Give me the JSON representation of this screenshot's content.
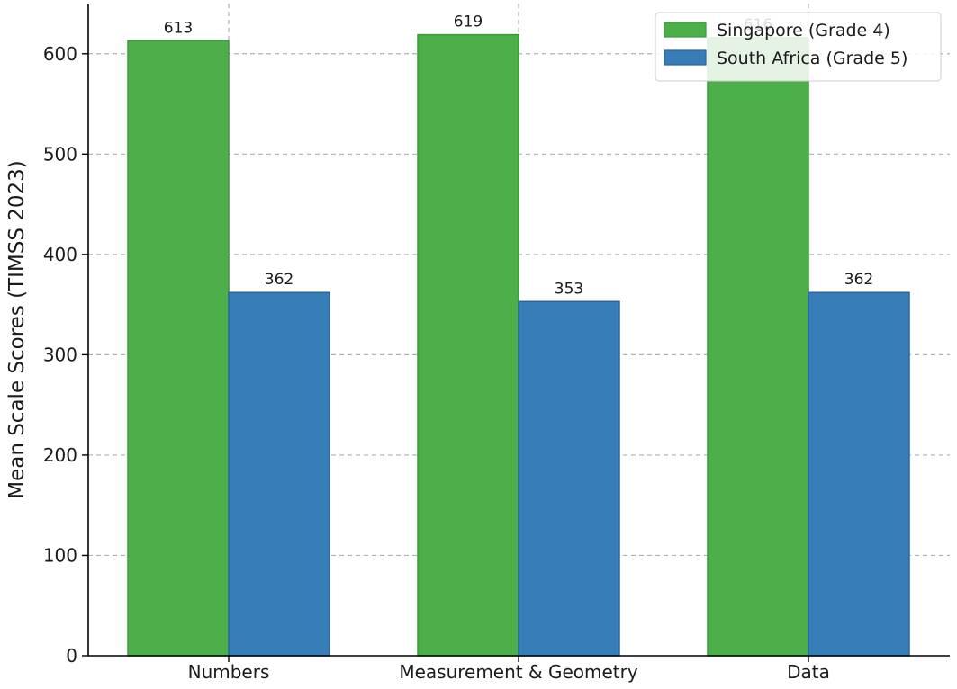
{
  "chart_data": {
    "type": "bar",
    "categories": [
      "Numbers",
      "Measurement & Geometry",
      "Data"
    ],
    "series": [
      {
        "name": "Singapore (Grade 4)",
        "values": [
          613,
          619,
          616
        ],
        "color": "#4daf4a",
        "edge": "#3c9a3a"
      },
      {
        "name": "South Africa (Grade 5)",
        "values": [
          362,
          353,
          362
        ],
        "color": "#377eb8",
        "edge": "#2a669e"
      }
    ],
    "title": "",
    "xlabel": "",
    "ylabel": "Mean Scale Scores (TIMSS 2023)",
    "ylim": [
      0,
      650
    ],
    "yticks": [
      0,
      100,
      200,
      300,
      400,
      500,
      600
    ],
    "grid": true,
    "legend_position": "top-right",
    "show_value_labels": true
  }
}
